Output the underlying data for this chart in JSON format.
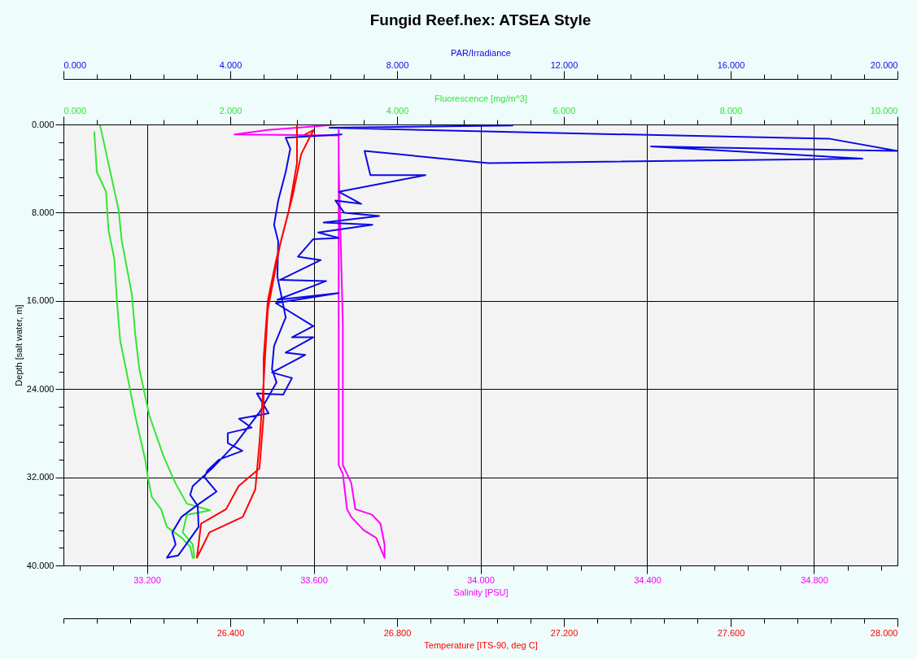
{
  "chart_data": [
    {
      "type": "line",
      "title": "Fungid Reef.hex: ATSEA Style",
      "ylabel": "Depth [salt water, m]",
      "xlabel": "Salinity [PSU]",
      "x2label": "Fluorescence [mg/m^3]",
      "ylim": [
        40,
        0
      ],
      "yticks": [
        {
          "value": 0,
          "label": "0.000"
        },
        {
          "value": 1.6,
          "label": null
        },
        {
          "value": 3.2,
          "label": null
        },
        {
          "value": 4.8,
          "label": null
        },
        {
          "value": 6.4,
          "label": null
        },
        {
          "value": 8,
          "label": "8.000"
        },
        {
          "value": 9.6,
          "label": null
        },
        {
          "value": 11.2,
          "label": null
        },
        {
          "value": 12.8,
          "label": null
        },
        {
          "value": 14.4,
          "label": null
        },
        {
          "value": 16,
          "label": "16.000"
        },
        {
          "value": 17.6,
          "label": null
        },
        {
          "value": 19.2,
          "label": null
        },
        {
          "value": 20.8,
          "label": null
        },
        {
          "value": 22.4,
          "label": null
        },
        {
          "value": 24,
          "label": "24.000"
        },
        {
          "value": 25.6,
          "label": null
        },
        {
          "value": 27.2,
          "label": null
        },
        {
          "value": 28.8,
          "label": null
        },
        {
          "value": 30.4,
          "label": null
        },
        {
          "value": 32,
          "label": "32.000"
        },
        {
          "value": 33.6,
          "label": null
        },
        {
          "value": 35.2,
          "label": null
        },
        {
          "value": 36.8,
          "label": null
        },
        {
          "value": 38.4,
          "label": null
        },
        {
          "value": 40,
          "label": "40.000"
        }
      ],
      "xlim": [
        33.0,
        35.0
      ],
      "xticks": [
        {
          "value": 33.04,
          "label": null
        },
        {
          "value": 33.12,
          "label": null
        },
        {
          "value": 33.2,
          "label": "33.200"
        },
        {
          "value": 33.28,
          "label": null
        },
        {
          "value": 33.36,
          "label": null
        },
        {
          "value": 33.44,
          "label": null
        },
        {
          "value": 33.52,
          "label": null
        },
        {
          "value": 33.6,
          "label": "33.600"
        },
        {
          "value": 33.68,
          "label": null
        },
        {
          "value": 33.76,
          "label": null
        },
        {
          "value": 33.84,
          "label": null
        },
        {
          "value": 33.92,
          "label": null
        },
        {
          "value": 34.0,
          "label": "34.000"
        },
        {
          "value": 34.08,
          "label": null
        },
        {
          "value": 34.16,
          "label": null
        },
        {
          "value": 34.24,
          "label": null
        },
        {
          "value": 34.32,
          "label": null
        },
        {
          "value": 34.4,
          "label": "34.400"
        },
        {
          "value": 34.48,
          "label": null
        },
        {
          "value": 34.56,
          "label": null
        },
        {
          "value": 34.64,
          "label": null
        },
        {
          "value": 34.72,
          "label": null
        },
        {
          "value": 34.8,
          "label": "34.800"
        },
        {
          "value": 34.88,
          "label": null
        },
        {
          "value": 34.96,
          "label": null
        }
      ],
      "x2lim": [
        0,
        10
      ],
      "x2ticks": [
        {
          "value": 0,
          "label": "0.000"
        },
        {
          "value": 0.4,
          "label": null
        },
        {
          "value": 0.8,
          "label": null
        },
        {
          "value": 1.2,
          "label": null
        },
        {
          "value": 1.6,
          "label": null
        },
        {
          "value": 2,
          "label": "2.000"
        },
        {
          "value": 2.4,
          "label": null
        },
        {
          "value": 2.8,
          "label": null
        },
        {
          "value": 3.2,
          "label": null
        },
        {
          "value": 3.6,
          "label": null
        },
        {
          "value": 4,
          "label": "4.000"
        },
        {
          "value": 4.4,
          "label": null
        },
        {
          "value": 4.8,
          "label": null
        },
        {
          "value": 5.2,
          "label": null
        },
        {
          "value": 5.6,
          "label": null
        },
        {
          "value": 6,
          "label": "6.000"
        },
        {
          "value": 6.4,
          "label": null
        },
        {
          "value": 6.8,
          "label": null
        },
        {
          "value": 7.2,
          "label": null
        },
        {
          "value": 7.6,
          "label": null
        },
        {
          "value": 8,
          "label": "8.000"
        },
        {
          "value": 8.4,
          "label": null
        },
        {
          "value": 8.8,
          "label": null
        },
        {
          "value": 9.2,
          "label": null
        },
        {
          "value": 9.6,
          "label": null
        },
        {
          "value": 10,
          "label": "10.000"
        }
      ],
      "grid": true,
      "series": [
        {
          "axis": "x2",
          "color": "#33e633",
          "x": [
            0.37,
            0.4,
            0.51,
            0.54,
            0.61,
            0.64,
            0.68,
            0.75,
            0.86,
            0.98,
            1.01,
            1.06,
            1.17,
            1.24,
            1.42,
            1.52,
            1.55,
            1.57,
            1.55,
            1.43,
            1.48,
            1.76,
            1.48,
            1.34,
            1.2,
            1.03,
            0.91,
            0.86,
            0.82,
            0.7,
            0.66,
            0.44
          ],
          "values": [
            0.7,
            4.3,
            6.1,
            9.6,
            12.2,
            15.9,
            19.6,
            22.2,
            26.4,
            30.4,
            31.9,
            33.8,
            34.9,
            36.5,
            37.5,
            38.3,
            39.3,
            39.3,
            38.1,
            37.0,
            35.4,
            35.0,
            34.4,
            32.5,
            30.1,
            26.4,
            22.2,
            19.0,
            15.4,
            10.6,
            7.7,
            0.1
          ]
        },
        {
          "color": "#ff00ff",
          "x": [
            33.66,
            33.49,
            33.41,
            33.66,
            33.66,
            33.66,
            33.66,
            33.66,
            33.67,
            33.68,
            33.69,
            33.72,
            33.75,
            33.77,
            33.77,
            33.76,
            33.74,
            33.7,
            33.69,
            33.67,
            33.67,
            33.66,
            33.66
          ],
          "values": [
            0.0,
            0.5,
            0.9,
            1.0,
            10.8,
            18.2,
            25.6,
            30.9,
            31.7,
            34.9,
            35.6,
            36.8,
            37.5,
            39.3,
            38.1,
            36.2,
            35.4,
            34.9,
            32.5,
            30.9,
            18.2,
            3.5,
            0.5
          ]
        }
      ]
    },
    {
      "type": "line",
      "xlabel": "Temperature [ITS-90, deg C]",
      "x2label": "PAR/Irradiance",
      "ylim": [
        40,
        0
      ],
      "tick_labels": "x",
      "xlim": [
        26.0,
        28.0
      ],
      "xticks": [
        {
          "value": 26.0,
          "label": null
        },
        {
          "value": 26.08,
          "label": null
        },
        {
          "value": 26.16,
          "label": null
        },
        {
          "value": 26.24,
          "label": null
        },
        {
          "value": 26.32,
          "label": null
        },
        {
          "value": 26.4,
          "label": "26.400"
        },
        {
          "value": 26.48,
          "label": null
        },
        {
          "value": 26.56,
          "label": null
        },
        {
          "value": 26.64,
          "label": null
        },
        {
          "value": 26.72,
          "label": null
        },
        {
          "value": 26.8,
          "label": "26.800"
        },
        {
          "value": 26.88,
          "label": null
        },
        {
          "value": 26.96,
          "label": null
        },
        {
          "value": 27.04,
          "label": null
        },
        {
          "value": 27.12,
          "label": null
        },
        {
          "value": 27.2,
          "label": "27.200"
        },
        {
          "value": 27.28,
          "label": null
        },
        {
          "value": 27.36,
          "label": null
        },
        {
          "value": 27.44,
          "label": null
        },
        {
          "value": 27.52,
          "label": null
        },
        {
          "value": 27.6,
          "label": "27.600"
        },
        {
          "value": 27.68,
          "label": null
        },
        {
          "value": 27.76,
          "label": null
        },
        {
          "value": 27.84,
          "label": null
        },
        {
          "value": 27.92,
          "label": null
        },
        {
          "value": 28.0,
          "label": "28.000"
        }
      ],
      "x2lim": [
        0,
        20
      ],
      "x2ticks": [
        {
          "value": 0,
          "label": "0.000"
        },
        {
          "value": 0.8,
          "label": null
        },
        {
          "value": 1.6,
          "label": null
        },
        {
          "value": 2.4,
          "label": null
        },
        {
          "value": 3.2,
          "label": null
        },
        {
          "value": 4,
          "label": "4.000"
        },
        {
          "value": 4.8,
          "label": null
        },
        {
          "value": 5.6,
          "label": null
        },
        {
          "value": 6.4,
          "label": null
        },
        {
          "value": 7.2,
          "label": null
        },
        {
          "value": 8,
          "label": "8.000"
        },
        {
          "value": 8.8,
          "label": null
        },
        {
          "value": 9.6,
          "label": null
        },
        {
          "value": 10.4,
          "label": null
        },
        {
          "value": 11.2,
          "label": null
        },
        {
          "value": 12,
          "label": "12.000"
        },
        {
          "value": 12.8,
          "label": null
        },
        {
          "value": 13.6,
          "label": null
        },
        {
          "value": 14.4,
          "label": null
        },
        {
          "value": 15.2,
          "label": null
        },
        {
          "value": 16,
          "label": "16.000"
        },
        {
          "value": 16.8,
          "label": null
        },
        {
          "value": 17.6,
          "label": null
        },
        {
          "value": 18.4,
          "label": null
        },
        {
          "value": 19.2,
          "label": null
        },
        {
          "value": 20,
          "label": "20.000"
        }
      ],
      "series": [
        {
          "axis": "x2",
          "color": "#0a0ae6",
          "x": [
            10.77,
            6.38,
            10.97,
            18.38,
            20.0,
            14.09,
            19.16,
            10.19,
            7.22,
            7.36,
            8.68,
            6.6,
            7.14,
            6.52,
            6.73,
            7.57,
            6.24,
            7.41,
            6.11,
            6.6,
            5.99,
            5.62,
            6.17,
            5.19,
            6.3,
            5.13,
            6.6,
            5.09,
            5.99,
            5.48,
            5.99,
            5.33,
            5.8,
            5.0,
            5.48,
            5.27,
            4.64,
            4.92,
            4.21,
            4.51,
            3.94,
            3.94,
            4.29,
            3.73,
            3.45,
            3.38,
            3.67,
            3.18,
            2.83,
            2.61,
            2.69,
            2.48,
            2.75,
            3.24,
            3.22,
            3.04,
            3.1,
            3.59,
            4.14,
            4.72,
            5.11,
            5.0,
            5.05,
            5.33,
            5.13,
            5.15,
            5.05,
            5.15,
            5.33,
            5.44,
            5.33,
            6.67
          ],
          "values": [
            0.1,
            0.3,
            0.7,
            1.3,
            2.4,
            2.0,
            3.1,
            3.5,
            2.4,
            4.6,
            4.6,
            6.1,
            7.2,
            6.9,
            8.0,
            8.3,
            8.9,
            9.1,
            9.8,
            10.3,
            10.4,
            12.0,
            12.3,
            14.1,
            14.2,
            15.9,
            15.3,
            16.2,
            18.3,
            19.3,
            19.3,
            20.7,
            20.9,
            22.5,
            23.0,
            24.5,
            24.4,
            26.2,
            26.7,
            27.5,
            28.0,
            28.9,
            29.6,
            30.4,
            31.4,
            32.0,
            33.3,
            34.6,
            35.6,
            37.0,
            38.1,
            39.3,
            39.1,
            36.5,
            34.6,
            33.6,
            32.8,
            31.1,
            28.9,
            26.0,
            23.4,
            22.2,
            20.1,
            17.5,
            13.8,
            10.6,
            9.1,
            6.9,
            4.3,
            2.2,
            1.2,
            0.9
          ]
        },
        {
          "color": "#ff0000",
          "x": [
            26.56,
            26.56,
            26.54,
            26.51,
            26.49,
            26.48,
            26.48,
            26.47,
            26.42,
            26.39,
            26.33,
            26.32,
            26.35,
            26.43,
            26.46,
            26.47,
            26.48,
            26.49,
            26.52,
            26.55,
            26.57,
            26.59,
            26.6,
            26.58
          ],
          "values": [
            0.1,
            3.5,
            7.9,
            12.3,
            16.0,
            21.2,
            26.4,
            31.2,
            32.8,
            34.9,
            36.2,
            39.3,
            37.0,
            35.6,
            33.1,
            28.9,
            23.4,
            16.8,
            10.8,
            6.4,
            2.7,
            1.2,
            0.5,
            0.9
          ]
        }
      ]
    }
  ]
}
